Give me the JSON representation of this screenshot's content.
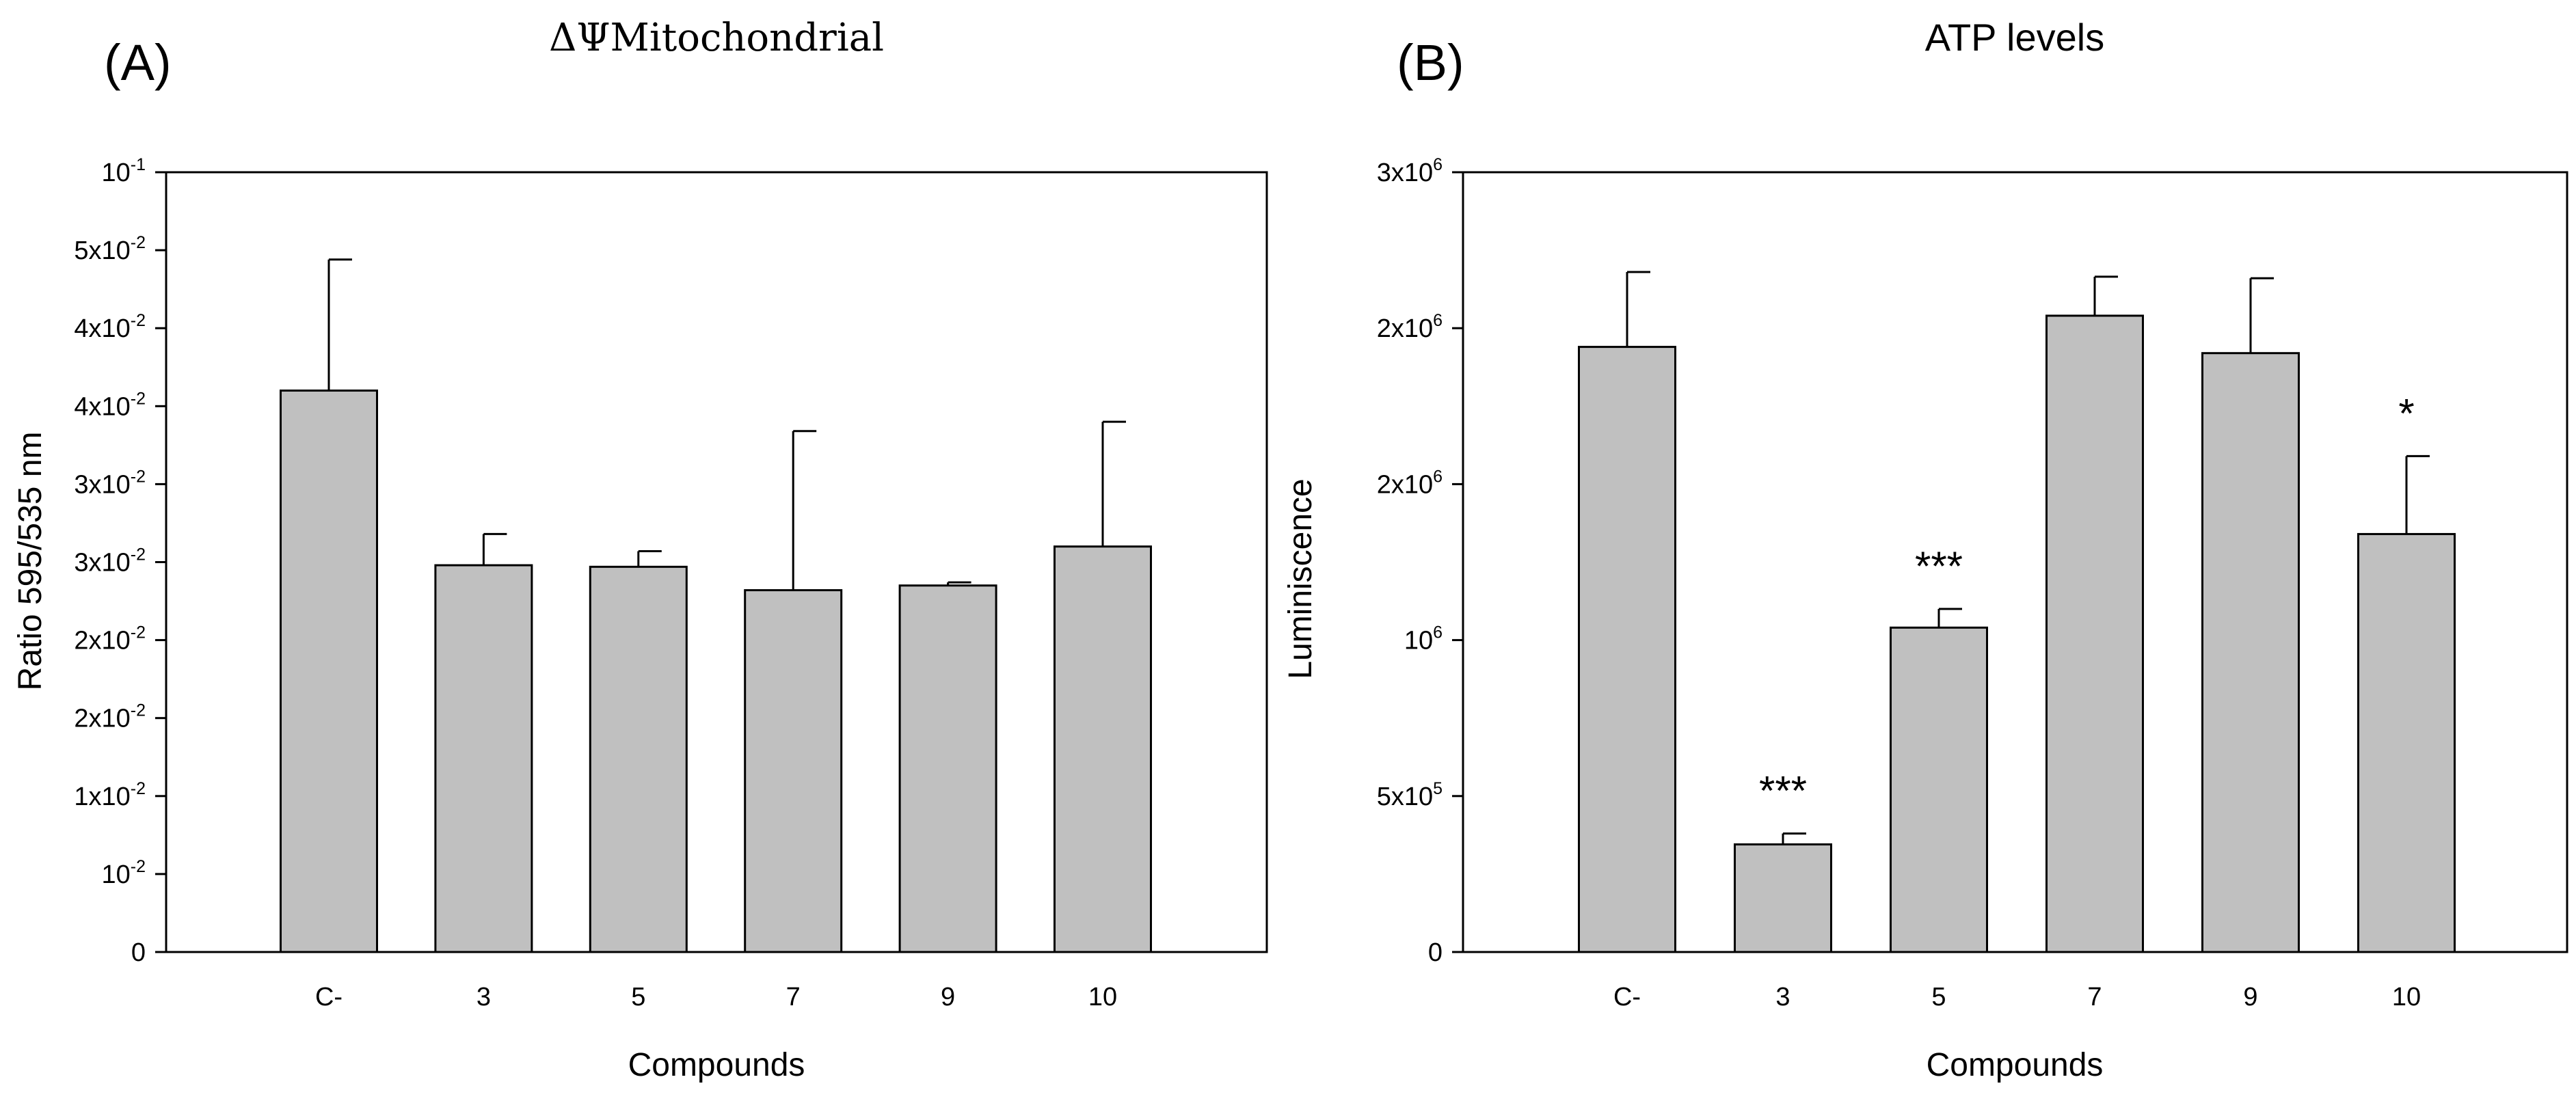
{
  "colors": {
    "bar_fill": "#c0c0c0",
    "bar_stroke": "#000000",
    "axis": "#000000",
    "background": "#ffffff"
  },
  "chart_data": [
    {
      "panel": "(A)",
      "type": "bar",
      "title": "ΔΨMitochondrial",
      "xlabel": "Compounds",
      "ylabel": "Ratio 595/535 nm",
      "categories": [
        "C-",
        "3",
        "5",
        "7",
        "9",
        "10"
      ],
      "values": [
        0.036,
        0.0248,
        0.0247,
        0.0232,
        0.0235,
        0.026
      ],
      "errors": [
        0.0084,
        0.002,
        0.001,
        0.0102,
        0.0002,
        0.008
      ],
      "annotations": [
        "",
        "",
        "",
        "",
        "",
        ""
      ],
      "ylim": [
        0,
        0.05
      ],
      "yticks": [
        {
          "value": 0,
          "base": "0",
          "exp": ""
        },
        {
          "value": 0.005,
          "base": "10",
          "exp": "-2"
        },
        {
          "value": 0.01,
          "base": "1x10",
          "exp": "-2"
        },
        {
          "value": 0.015,
          "base": "2x10",
          "exp": "-2"
        },
        {
          "value": 0.02,
          "base": "2x10",
          "exp": "-2"
        },
        {
          "value": 0.025,
          "base": "3x10",
          "exp": "-2"
        },
        {
          "value": 0.03,
          "base": "3x10",
          "exp": "-2"
        },
        {
          "value": 0.035,
          "base": "4x10",
          "exp": "-2"
        },
        {
          "value": 0.04,
          "base": "4x10",
          "exp": "-2"
        },
        {
          "value": 0.045,
          "base": "5x10",
          "exp": "-2"
        },
        {
          "value": 0.05,
          "base": "10",
          "exp": "-1"
        }
      ]
    },
    {
      "panel": "(B)",
      "type": "bar",
      "title": "ATP levels",
      "xlabel": "Compounds",
      "ylabel": "Luminiscence",
      "categories": [
        "C-",
        "3",
        "5",
        "7",
        "9",
        "10"
      ],
      "values": [
        1940000,
        345000,
        1040000,
        2040000,
        1920000,
        1340000
      ],
      "errors": [
        240000,
        35000,
        60000,
        125000,
        240000,
        250000
      ],
      "annotations": [
        "",
        "***",
        "***",
        "",
        "",
        "*"
      ],
      "ylim": [
        0,
        2500000
      ],
      "yticks": [
        {
          "value": 0,
          "base": "0",
          "exp": ""
        },
        {
          "value": 500000,
          "base": "5x10",
          "exp": "5"
        },
        {
          "value": 1000000,
          "base": "10",
          "exp": "6"
        },
        {
          "value": 1500000,
          "base": "2x10",
          "exp": "6"
        },
        {
          "value": 2000000,
          "base": "2x10",
          "exp": "6"
        },
        {
          "value": 2500000,
          "base": "3x10",
          "exp": "6"
        }
      ]
    }
  ]
}
